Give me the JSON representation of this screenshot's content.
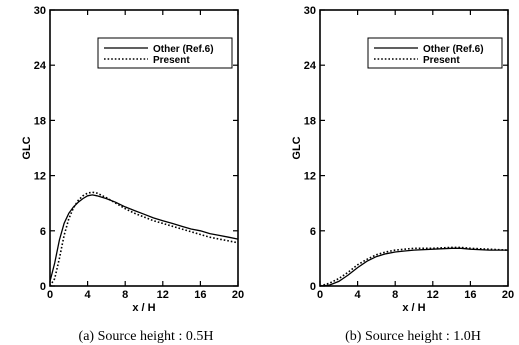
{
  "chart_data": [
    {
      "type": "line",
      "caption": "(a) Source height : 0.5H",
      "xlabel": "x / H",
      "ylabel": "GLC",
      "xlim": [
        0,
        20
      ],
      "ylim": [
        0,
        30
      ],
      "xticks": [
        "0",
        "4",
        "8",
        "12",
        "16",
        "20"
      ],
      "yticks": [
        "0",
        "6",
        "12",
        "18",
        "24",
        "30"
      ],
      "grid": false,
      "legend_position": "top-right",
      "series": [
        {
          "name": "Other (Ref.6)",
          "style": "solid",
          "x": [
            0,
            0.5,
            1,
            1.5,
            2,
            2.5,
            3,
            3.5,
            4,
            4.5,
            5,
            6,
            7,
            8,
            9,
            10,
            11,
            12,
            13,
            14,
            15,
            16,
            17,
            18,
            19,
            20
          ],
          "y": [
            0.5,
            2.5,
            5.0,
            6.8,
            7.9,
            8.6,
            9.1,
            9.5,
            9.8,
            9.9,
            9.8,
            9.5,
            9.1,
            8.6,
            8.2,
            7.8,
            7.4,
            7.1,
            6.8,
            6.5,
            6.2,
            6.0,
            5.7,
            5.5,
            5.3,
            5.1
          ]
        },
        {
          "name": "Present",
          "style": "dotted",
          "x": [
            0,
            0.5,
            1,
            1.5,
            2,
            2.5,
            3,
            3.5,
            4,
            4.5,
            5,
            6,
            7,
            8,
            9,
            10,
            11,
            12,
            13,
            14,
            15,
            16,
            17,
            18,
            19,
            20
          ],
          "y": [
            0,
            0.8,
            3.0,
            5.5,
            7.3,
            8.5,
            9.3,
            9.8,
            10.1,
            10.2,
            10.1,
            9.6,
            9.0,
            8.4,
            7.9,
            7.5,
            7.1,
            6.8,
            6.5,
            6.2,
            5.9,
            5.6,
            5.3,
            5.1,
            4.9,
            4.7
          ]
        }
      ]
    },
    {
      "type": "line",
      "caption": "(b) Source height : 1.0H",
      "xlabel": "x / H",
      "ylabel": "GLC",
      "xlim": [
        0,
        20
      ],
      "ylim": [
        0,
        30
      ],
      "xticks": [
        "0",
        "4",
        "8",
        "12",
        "16",
        "20"
      ],
      "yticks": [
        "0",
        "6",
        "12",
        "18",
        "24",
        "30"
      ],
      "grid": false,
      "legend_position": "top-right",
      "series": [
        {
          "name": "Other (Ref.6)",
          "style": "solid",
          "x": [
            0,
            1,
            2,
            3,
            4,
            5,
            6,
            7,
            8,
            9,
            10,
            12,
            14,
            15,
            16,
            18,
            20
          ],
          "y": [
            0,
            0.1,
            0.5,
            1.2,
            2.0,
            2.7,
            3.2,
            3.5,
            3.7,
            3.8,
            3.9,
            4.0,
            4.1,
            4.1,
            4.0,
            3.9,
            3.9
          ]
        },
        {
          "name": "Present",
          "style": "dotted",
          "x": [
            0,
            1,
            2,
            3,
            4,
            5,
            6,
            7,
            8,
            9,
            10,
            12,
            14,
            15,
            16,
            18,
            20
          ],
          "y": [
            0,
            0.3,
            0.8,
            1.5,
            2.3,
            2.9,
            3.4,
            3.7,
            3.9,
            4.0,
            4.1,
            4.1,
            4.2,
            4.2,
            4.1,
            4.0,
            3.9
          ]
        }
      ]
    }
  ]
}
